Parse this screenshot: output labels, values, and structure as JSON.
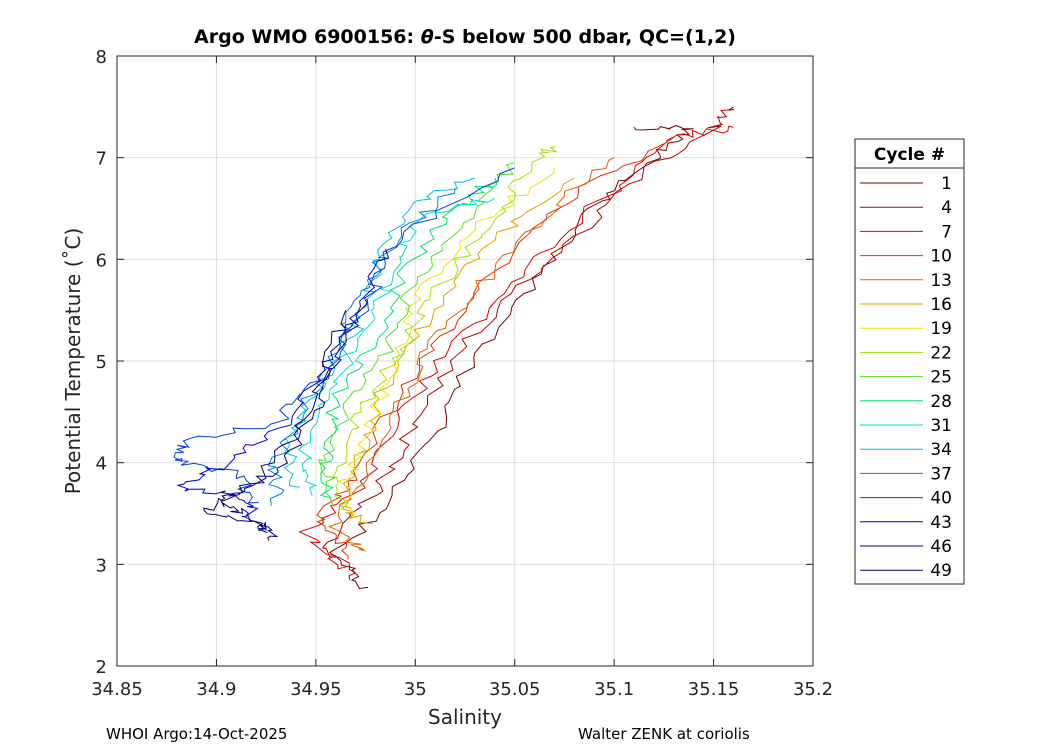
{
  "chart_data": {
    "type": "line",
    "title_prefix": "Argo WMO 6900156: ",
    "title_symbol": "θ",
    "title_suffix": "-S below 500 dbar,  QC=(1,2)",
    "xlabel": "Salinity",
    "ylabel": "Potential Temperature (˚C)",
    "xlim": [
      34.85,
      35.2
    ],
    "ylim": [
      2,
      8
    ],
    "xticks": [
      "34.85",
      "34.9",
      "34.95",
      "35",
      "35.05",
      "35.1",
      "35.15",
      "35.2"
    ],
    "yticks": [
      "2",
      "3",
      "4",
      "5",
      "6",
      "7",
      "8"
    ],
    "grid": true,
    "legend_title": "Cycle #",
    "legend_placement": "right-outside",
    "legend": [
      {
        "label": "1",
        "color": "#800000"
      },
      {
        "label": "4",
        "color": "#b00000"
      },
      {
        "label": "7",
        "color": "#e00000"
      },
      {
        "label": "10",
        "color": "#e03000"
      },
      {
        "label": "13",
        "color": "#e06000"
      },
      {
        "label": "16",
        "color": "#e0a000"
      },
      {
        "label": "19",
        "color": "#f0e000"
      },
      {
        "label": "22",
        "color": "#a0e000"
      },
      {
        "label": "25",
        "color": "#50e020"
      },
      {
        "label": "28",
        "color": "#00e070"
      },
      {
        "label": "31",
        "color": "#00e0c0"
      },
      {
        "label": "34",
        "color": "#00c0e0"
      },
      {
        "label": "37",
        "color": "#0080e0"
      },
      {
        "label": "40",
        "color": "#0040e0"
      },
      {
        "label": "43",
        "color": "#0000d0"
      },
      {
        "label": "46",
        "color": "#000090"
      },
      {
        "label": "49",
        "color": "#000070"
      }
    ],
    "series": [
      {
        "name": "1",
        "color": "#800000",
        "points": [
          [
            34.975,
            2.75
          ],
          [
            34.96,
            3.1
          ],
          [
            34.985,
            3.6
          ],
          [
            35.01,
            4.3
          ],
          [
            35.03,
            5.1
          ],
          [
            35.06,
            5.8
          ],
          [
            35.09,
            6.5
          ],
          [
            35.12,
            7.0
          ],
          [
            35.14,
            7.3
          ],
          [
            35.11,
            7.3
          ]
        ]
      },
      {
        "name": "4",
        "color": "#b00000",
        "points": [
          [
            34.97,
            2.85
          ],
          [
            34.955,
            3.2
          ],
          [
            34.98,
            3.7
          ],
          [
            35.0,
            4.4
          ],
          [
            35.03,
            5.3
          ],
          [
            35.07,
            6.0
          ],
          [
            35.11,
            6.8
          ],
          [
            35.15,
            7.3
          ],
          [
            35.16,
            7.5
          ]
        ]
      },
      {
        "name": "7",
        "color": "#e00000",
        "points": [
          [
            34.965,
            2.95
          ],
          [
            34.945,
            3.3
          ],
          [
            34.975,
            3.8
          ],
          [
            34.995,
            4.5
          ],
          [
            35.02,
            5.2
          ],
          [
            35.06,
            6.0
          ],
          [
            35.1,
            6.7
          ],
          [
            35.13,
            7.2
          ],
          [
            35.16,
            7.3
          ]
        ]
      },
      {
        "name": "10",
        "color": "#e03000",
        "points": [
          [
            34.97,
            3.05
          ],
          [
            34.95,
            3.4
          ],
          [
            34.97,
            3.9
          ],
          [
            34.99,
            4.6
          ],
          [
            35.02,
            5.4
          ],
          [
            35.05,
            6.1
          ],
          [
            35.09,
            6.8
          ],
          [
            35.13,
            7.2
          ]
        ]
      },
      {
        "name": "13",
        "color": "#e06000",
        "points": [
          [
            34.975,
            3.1
          ],
          [
            34.96,
            3.35
          ],
          [
            34.975,
            3.9
          ],
          [
            34.99,
            4.5
          ],
          [
            35.01,
            5.2
          ],
          [
            35.04,
            5.9
          ],
          [
            35.07,
            6.5
          ],
          [
            35.1,
            7.0
          ]
        ]
      },
      {
        "name": "16",
        "color": "#e0a000",
        "points": [
          [
            34.975,
            3.4
          ],
          [
            34.965,
            3.6
          ],
          [
            34.975,
            4.2
          ],
          [
            34.985,
            4.8
          ],
          [
            35.01,
            5.5
          ],
          [
            35.04,
            6.2
          ],
          [
            35.08,
            6.8
          ]
        ]
      },
      {
        "name": "19",
        "color": "#f0e000",
        "points": [
          [
            34.97,
            3.5
          ],
          [
            34.965,
            3.8
          ],
          [
            34.975,
            4.3
          ],
          [
            34.99,
            4.9
          ],
          [
            35.0,
            5.6
          ],
          [
            35.03,
            6.3
          ],
          [
            35.07,
            6.9
          ]
        ]
      },
      {
        "name": "22",
        "color": "#a0e000",
        "points": [
          [
            34.965,
            3.55
          ],
          [
            34.96,
            3.9
          ],
          [
            34.97,
            4.4
          ],
          [
            34.99,
            5.0
          ],
          [
            35.01,
            5.7
          ],
          [
            35.04,
            6.4
          ],
          [
            35.06,
            7.0
          ],
          [
            35.07,
            7.1
          ]
        ]
      },
      {
        "name": "25",
        "color": "#50e020",
        "points": [
          [
            34.96,
            3.6
          ],
          [
            34.955,
            4.0
          ],
          [
            34.965,
            4.5
          ],
          [
            34.985,
            5.1
          ],
          [
            35.0,
            5.8
          ],
          [
            35.03,
            6.5
          ],
          [
            35.05,
            6.95
          ]
        ]
      },
      {
        "name": "28",
        "color": "#00e070",
        "points": [
          [
            34.955,
            3.65
          ],
          [
            34.955,
            4.1
          ],
          [
            34.96,
            4.6
          ],
          [
            34.98,
            5.2
          ],
          [
            34.995,
            5.9
          ],
          [
            35.02,
            6.5
          ],
          [
            35.04,
            6.8
          ]
        ]
      },
      {
        "name": "31",
        "color": "#00e0c0",
        "points": [
          [
            34.95,
            3.7
          ],
          [
            34.945,
            4.1
          ],
          [
            34.955,
            4.7
          ],
          [
            34.975,
            5.3
          ],
          [
            34.99,
            5.9
          ],
          [
            35.0,
            6.4
          ],
          [
            35.04,
            6.6
          ]
        ]
      },
      {
        "name": "34",
        "color": "#00c0e0",
        "points": [
          [
            34.94,
            3.75
          ],
          [
            34.935,
            4.2
          ],
          [
            34.95,
            4.7
          ],
          [
            34.97,
            5.3
          ],
          [
            34.98,
            5.9
          ],
          [
            34.995,
            6.5
          ],
          [
            35.03,
            6.8
          ]
        ]
      },
      {
        "name": "37",
        "color": "#0080e0",
        "points": [
          [
            34.93,
            3.6
          ],
          [
            34.93,
            4.0
          ],
          [
            34.945,
            4.6
          ],
          [
            34.96,
            5.1
          ],
          [
            34.975,
            5.7
          ],
          [
            34.99,
            6.2
          ],
          [
            35.02,
            6.7
          ]
        ]
      },
      {
        "name": "40",
        "color": "#0040e0",
        "points": [
          [
            34.92,
            3.6
          ],
          [
            34.91,
            3.9
          ],
          [
            34.88,
            4.0
          ],
          [
            34.885,
            4.2
          ],
          [
            34.93,
            4.4
          ],
          [
            34.955,
            4.9
          ],
          [
            34.975,
            5.5
          ],
          [
            34.99,
            6.2
          ],
          [
            35.05,
            6.9
          ]
        ]
      },
      {
        "name": "43",
        "color": "#0000d0",
        "points": [
          [
            34.92,
            3.45
          ],
          [
            34.91,
            3.7
          ],
          [
            34.88,
            3.75
          ],
          [
            34.9,
            3.95
          ],
          [
            34.93,
            4.3
          ],
          [
            34.95,
            4.8
          ],
          [
            34.97,
            5.4
          ],
          [
            34.985,
            6.1
          ]
        ]
      },
      {
        "name": "46",
        "color": "#000090",
        "points": [
          [
            34.925,
            3.3
          ],
          [
            34.915,
            3.5
          ],
          [
            34.9,
            3.6
          ],
          [
            34.93,
            3.9
          ],
          [
            34.95,
            4.5
          ],
          [
            34.96,
            5.0
          ],
          [
            34.975,
            5.6
          ]
        ]
      },
      {
        "name": "49",
        "color": "#000070",
        "points": [
          [
            34.93,
            3.25
          ],
          [
            34.92,
            3.4
          ],
          [
            34.89,
            3.5
          ],
          [
            34.92,
            3.8
          ],
          [
            34.94,
            4.3
          ],
          [
            34.955,
            4.9
          ],
          [
            34.965,
            5.5
          ]
        ]
      }
    ]
  },
  "footer": {
    "left": "WHOI Argo:14-Oct-2025",
    "right": "Walter ZENK at coriolis"
  }
}
